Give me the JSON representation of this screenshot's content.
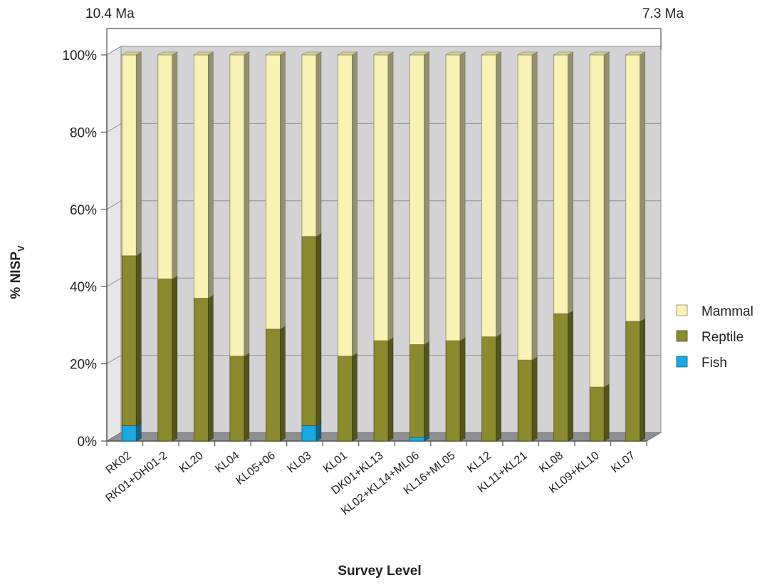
{
  "chart_data": {
    "type": "bar",
    "stacked": true,
    "percent": true,
    "categories": [
      "RK02",
      "RK01+DH01-2",
      "KL20",
      "KL04",
      "KL05+06",
      "KL03",
      "KL01",
      "DK01+KL13",
      "KL02+KL14+ML06",
      "KL16+ML05",
      "KL12",
      "KL11+KL21",
      "KL08",
      "KL09+KL10",
      "KL07"
    ],
    "series": [
      {
        "name": "Fish",
        "values": [
          4,
          0,
          0,
          0,
          0,
          4,
          0,
          0,
          1,
          0,
          0,
          0,
          0,
          0,
          0
        ],
        "color": "#1aa9e1"
      },
      {
        "name": "Reptile",
        "values": [
          44,
          42,
          37,
          22,
          29,
          49,
          22,
          26,
          24,
          26,
          27,
          21,
          33,
          14,
          31
        ],
        "color": "#8a8a2e"
      },
      {
        "name": "Mammal",
        "values": [
          52,
          58,
          63,
          78,
          71,
          47,
          78,
          74,
          75,
          74,
          73,
          79,
          67,
          86,
          69
        ],
        "color": "#f8f2b4"
      }
    ],
    "ylabel": "% NISP",
    "ylabel_sub": "V",
    "xlabel": "Survey Level",
    "yticks": [
      "0%",
      "20%",
      "40%",
      "60%",
      "80%",
      "100%"
    ],
    "ylim": [
      0,
      100
    ],
    "grid": true,
    "legend_position": "right",
    "legend_order": [
      "Mammal",
      "Reptile",
      "Fish"
    ],
    "time_start": "10.4 Ma",
    "time_end": "7.3 Ma",
    "colors": {
      "wall": "#d3d3d5",
      "floor": "#8d8f91",
      "grid": "#8f8f8f"
    }
  }
}
